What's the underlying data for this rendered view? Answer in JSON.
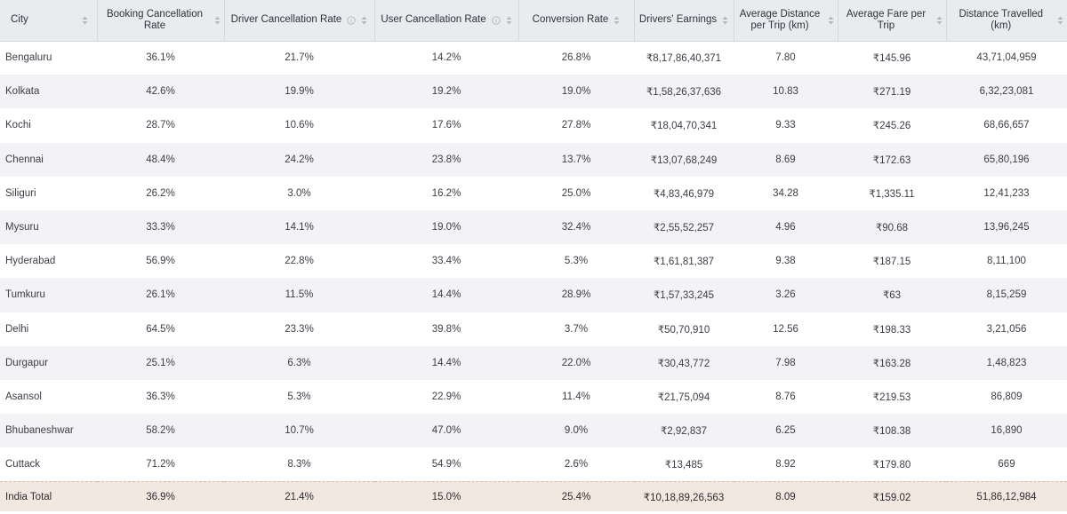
{
  "table": {
    "columns": [
      {
        "label": "City",
        "info": false
      },
      {
        "label": "Booking Cancellation Rate",
        "info": false
      },
      {
        "label": "Driver Cancellation Rate",
        "info": true
      },
      {
        "label": "User Cancellation Rate",
        "info": true
      },
      {
        "label": "Conversion Rate",
        "info": false
      },
      {
        "label": "Drivers' Earnings",
        "info": false
      },
      {
        "label": "Average Distance per Trip (km)",
        "info": false
      },
      {
        "label": "Average Fare per Trip",
        "info": false
      },
      {
        "label": "Distance Travelled (km)",
        "info": false
      }
    ],
    "rows": [
      [
        "Bengaluru",
        "36.1%",
        "21.7%",
        "14.2%",
        "26.8%",
        "₹8,17,86,40,371",
        "7.80",
        "₹145.96",
        "43,71,04,959"
      ],
      [
        "Kolkata",
        "42.6%",
        "19.9%",
        "19.2%",
        "19.0%",
        "₹1,58,26,37,636",
        "10.83",
        "₹271.19",
        "6,32,23,081"
      ],
      [
        "Kochi",
        "28.7%",
        "10.6%",
        "17.6%",
        "27.8%",
        "₹18,04,70,341",
        "9.33",
        "₹245.26",
        "68,66,657"
      ],
      [
        "Chennai",
        "48.4%",
        "24.2%",
        "23.8%",
        "13.7%",
        "₹13,07,68,249",
        "8.69",
        "₹172.63",
        "65,80,196"
      ],
      [
        "Siliguri",
        "26.2%",
        "3.0%",
        "16.2%",
        "25.0%",
        "₹4,83,46,979",
        "34.28",
        "₹1,335.11",
        "12,41,233"
      ],
      [
        "Mysuru",
        "33.3%",
        "14.1%",
        "19.0%",
        "32.4%",
        "₹2,55,52,257",
        "4.96",
        "₹90.68",
        "13,96,245"
      ],
      [
        "Hyderabad",
        "56.9%",
        "22.8%",
        "33.4%",
        "5.3%",
        "₹1,61,81,387",
        "9.38",
        "₹187.15",
        "8,11,100"
      ],
      [
        "Tumkuru",
        "26.1%",
        "11.5%",
        "14.4%",
        "28.9%",
        "₹1,57,33,245",
        "3.26",
        "₹63",
        "8,15,259"
      ],
      [
        "Delhi",
        "64.5%",
        "23.3%",
        "39.8%",
        "3.7%",
        "₹50,70,910",
        "12.56",
        "₹198.33",
        "3,21,056"
      ],
      [
        "Durgapur",
        "25.1%",
        "6.3%",
        "14.4%",
        "22.0%",
        "₹30,43,772",
        "7.98",
        "₹163.28",
        "1,48,823"
      ],
      [
        "Asansol",
        "36.3%",
        "5.3%",
        "22.9%",
        "11.4%",
        "₹21,75,094",
        "8.76",
        "₹219.53",
        "86,809"
      ],
      [
        "Bhubaneshwar",
        "58.2%",
        "10.7%",
        "47.0%",
        "9.0%",
        "₹2,92,837",
        "6.25",
        "₹108.38",
        "16,890"
      ],
      [
        "Cuttack",
        "71.2%",
        "8.3%",
        "54.9%",
        "2.6%",
        "₹13,485",
        "8.92",
        "₹179.80",
        "669"
      ]
    ],
    "total": [
      "India Total",
      "36.9%",
      "21.4%",
      "15.0%",
      "25.4%",
      "₹10,18,89,26,563",
      "8.09",
      "₹159.02",
      "51,86,12,984"
    ]
  },
  "icons": {
    "sort": "sort-updown-icon",
    "info": "info-icon"
  },
  "colors": {
    "header_bg": "#eaebef",
    "stripe_bg": "#f3f3f6",
    "total_bg": "#f3e8df"
  }
}
